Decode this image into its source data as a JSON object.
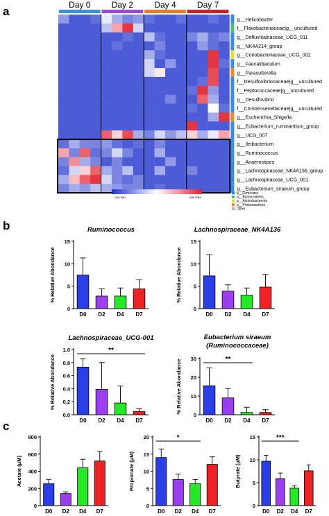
{
  "panels": {
    "a": "a",
    "b": "b",
    "c": "c"
  },
  "heatmap": {
    "days": [
      {
        "label": "Day 0",
        "color": "#3b8fe0"
      },
      {
        "label": "Day 2",
        "color": "#9e47e0"
      },
      {
        "label": "Day 4",
        "color": "#ee7a22"
      },
      {
        "label": "Day 7",
        "color": "#d21e2a"
      }
    ],
    "samples_per_day": [
      4,
      4,
      4,
      4
    ],
    "rows": [
      {
        "label": "g__Helicobacter",
        "phylum": "#3a8de0"
      },
      {
        "label": "f__Flavobacteriaceae|g__uncultured",
        "phylum": "#44c46a"
      },
      {
        "label": "g__Defluviitaleaceae_UCG_011",
        "phylum": "#3a8de0"
      },
      {
        "label": "g__NK4A214_group",
        "phylum": "#3a8de0"
      },
      {
        "label": "g__Coriobacteriaceae_UCG_002",
        "phylum": "#e6dd33"
      },
      {
        "label": "g__Faecalibaculum",
        "phylum": "#3a8de0"
      },
      {
        "label": "g__Parasutterella",
        "phylum": "#ee8a2a"
      },
      {
        "label": "f__Desulfovibrionaceae|g__uncultured",
        "phylum": "#3a8de0"
      },
      {
        "label": "f__Peptococcaceae|g__uncultured",
        "phylum": "#3a8de0"
      },
      {
        "label": "g__Desulfovibrio",
        "phylum": "#3a8de0"
      },
      {
        "label": "f__Christensenellaceae|g__uncultured",
        "phylum": "#3a8de0"
      },
      {
        "label": "g__Escherichia_Shigella",
        "phylum": "#ee8a2a"
      },
      {
        "label": "g__Eubacterium_ruminantium_group",
        "phylum": "#3a8de0"
      },
      {
        "label": "g__UCG_007",
        "phylum": "#3a8de0"
      },
      {
        "label": "g__Ileibacterium",
        "phylum": "#3a8de0"
      },
      {
        "label": "g__Ruminococcus",
        "phylum": "#3a8de0"
      },
      {
        "label": "g__Anaerostipes",
        "phylum": "#3a8de0"
      },
      {
        "label": "g__Lachnospiraceae_NK4A136_group",
        "phylum": "#3a8de0"
      },
      {
        "label": "g__Lachnospiraceae_UCG_001",
        "phylum": "#3a8de0"
      },
      {
        "label": "g__Eubacterium_siraeum_group",
        "phylum": "#3a8de0"
      }
    ],
    "values": [
      [
        0.25,
        0.1,
        0.1,
        0.15,
        0.45,
        0.3,
        0.2,
        0.25,
        0.15,
        0.1,
        0.1,
        0.15,
        0.1,
        0.1,
        0.15,
        0.1
      ],
      [
        0.1,
        0.1,
        0.1,
        0.1,
        0.35,
        0.7,
        0.95,
        0.4,
        0.1,
        0.1,
        0.1,
        0.1,
        0.1,
        0.1,
        0.1,
        0.1
      ],
      [
        0.1,
        0.1,
        0.1,
        0.1,
        0.1,
        0.1,
        0.15,
        0.1,
        0.35,
        0.15,
        0.1,
        0.1,
        0.2,
        0.3,
        0.15,
        0.2
      ],
      [
        0.1,
        0.1,
        0.1,
        0.1,
        0.1,
        0.15,
        0.1,
        0.1,
        0.1,
        0.2,
        0.1,
        0.1,
        0.1,
        0.25,
        0.15,
        0.1
      ],
      [
        0.1,
        0.1,
        0.1,
        0.1,
        0.1,
        0.1,
        0.1,
        0.1,
        0.3,
        0.15,
        0.1,
        0.1,
        0.1,
        0.1,
        0.95,
        0.1
      ],
      [
        0.1,
        0.1,
        0.1,
        0.1,
        0.1,
        0.1,
        0.1,
        0.1,
        0.4,
        0.1,
        0.25,
        0.1,
        0.1,
        0.1,
        0.95,
        0.15
      ],
      [
        0.1,
        0.1,
        0.1,
        0.1,
        0.1,
        0.1,
        0.1,
        0.1,
        0.4,
        0.55,
        0.1,
        0.1,
        0.1,
        0.1,
        0.9,
        0.1
      ],
      [
        0.1,
        0.1,
        0.1,
        0.1,
        0.1,
        0.1,
        0.1,
        0.1,
        0.1,
        0.1,
        0.1,
        0.1,
        0.1,
        0.15,
        0.9,
        0.1
      ],
      [
        0.1,
        0.1,
        0.1,
        0.1,
        0.1,
        0.1,
        0.1,
        0.1,
        0.1,
        0.1,
        0.1,
        0.1,
        0.15,
        0.95,
        0.25,
        0.1
      ],
      [
        0.1,
        0.1,
        0.1,
        0.1,
        0.1,
        0.1,
        0.1,
        0.1,
        0.1,
        0.1,
        0.2,
        0.1,
        0.1,
        0.85,
        0.3,
        0.1
      ],
      [
        0.1,
        0.1,
        0.1,
        0.1,
        0.1,
        0.1,
        0.1,
        0.1,
        0.1,
        0.1,
        0.1,
        0.1,
        0.15,
        0.1,
        0.5,
        0.15
      ],
      [
        0.1,
        0.1,
        0.1,
        0.1,
        0.1,
        0.1,
        0.1,
        0.1,
        0.1,
        0.1,
        0.1,
        0.1,
        0.1,
        0.1,
        0.3,
        0.95
      ],
      [
        0.1,
        0.1,
        0.1,
        0.1,
        0.1,
        0.1,
        0.1,
        0.1,
        0.1,
        0.1,
        0.1,
        0.1,
        0.95,
        0.1,
        0.1,
        0.1
      ],
      [
        0.1,
        0.1,
        0.1,
        0.1,
        0.85,
        0.6,
        0.9,
        0.3,
        0.2,
        0.4,
        0.25,
        0.35,
        0.6,
        0.3,
        0.45,
        0.7
      ],
      [
        0.15,
        0.3,
        0.2,
        0.2,
        0.25,
        0.15,
        0.1,
        0.15,
        0.1,
        0.2,
        0.1,
        0.1,
        0.1,
        0.1,
        0.1,
        0.1
      ],
      [
        0.7,
        0.2,
        0.85,
        0.15,
        0.2,
        0.4,
        0.2,
        0.1,
        0.1,
        0.3,
        0.1,
        0.1,
        0.1,
        0.1,
        0.1,
        0.1
      ],
      [
        0.2,
        0.75,
        0.3,
        0.2,
        0.1,
        0.2,
        0.1,
        0.1,
        0.1,
        0.1,
        0.25,
        0.1,
        0.1,
        0.1,
        0.1,
        0.1
      ],
      [
        0.15,
        0.4,
        0.6,
        0.85,
        0.3,
        0.2,
        0.35,
        0.1,
        0.1,
        0.3,
        0.1,
        0.1,
        0.2,
        0.1,
        0.1,
        0.1
      ],
      [
        0.3,
        0.65,
        0.85,
        0.95,
        0.4,
        0.2,
        0.15,
        0.2,
        0.1,
        0.1,
        0.1,
        0.1,
        0.1,
        0.1,
        0.1,
        0.1
      ],
      [
        0.2,
        0.3,
        0.25,
        0.35,
        0.3,
        0.25,
        0.2,
        0.2,
        0.1,
        0.15,
        0.1,
        0.1,
        0.1,
        0.1,
        0.1,
        0.1
      ]
    ],
    "scale_min": "row min",
    "scale_max": "row max",
    "scale_colors": [
      "#1f33cc",
      "#ffffff",
      "#e21f2b"
    ],
    "phylum_legend": [
      {
        "label": "p__Firmicutes",
        "color": "#3a8de0"
      },
      {
        "label": "p__Bacteroidetes",
        "color": "#44c46a"
      },
      {
        "label": "p__Actinobacteriota",
        "color": "#e6dd33"
      },
      {
        "label": "p__Proteobacteria",
        "color": "#ee8a2a"
      },
      {
        "label": "Other",
        "color": "#b0b0b0"
      }
    ]
  },
  "chart_data": [
    {
      "type": "bar",
      "title": "Ruminococcus",
      "ylabel": "% Relative Abondance",
      "categories": [
        "D0",
        "D2",
        "D4",
        "D7"
      ],
      "values": [
        7.5,
        2.8,
        2.8,
        4.4
      ],
      "errors": [
        3.8,
        1.6,
        1.8,
        2.0
      ],
      "ylim": [
        0,
        15
      ],
      "yticks": [
        0,
        5,
        10,
        15
      ],
      "colors": [
        "#2a3ee8",
        "#9a3ef0",
        "#27e827",
        "#ee2222"
      ],
      "significance": []
    },
    {
      "type": "bar",
      "title": "Lachnospiraceae_NK4A136",
      "ylabel": "% Relative Abondance",
      "categories": [
        "D0",
        "D2",
        "D4",
        "D7"
      ],
      "values": [
        7.3,
        3.9,
        3.0,
        4.8
      ],
      "errors": [
        4.7,
        1.4,
        1.6,
        2.8
      ],
      "ylim": [
        0,
        15
      ],
      "yticks": [
        0,
        5,
        10,
        15
      ],
      "colors": [
        "#2a3ee8",
        "#9a3ef0",
        "#27e827",
        "#ee2222"
      ],
      "significance": []
    },
    {
      "type": "bar",
      "title": "Lachnospiraceae_UCG-001",
      "ylabel": "% Relative Abondance",
      "categories": [
        "D0",
        "D2",
        "D4",
        "D7"
      ],
      "values": [
        0.73,
        0.39,
        0.18,
        0.05
      ],
      "errors": [
        0.13,
        0.41,
        0.26,
        0.04
      ],
      "ylim": [
        0,
        1.0
      ],
      "yticks": [
        0,
        0.2,
        0.4,
        0.6,
        0.8,
        1.0
      ],
      "yticklabels": [
        "0.0",
        "0.2",
        "0.4",
        "0.6",
        "0.8",
        "1.0"
      ],
      "colors": [
        "#2a3ee8",
        "#9a3ef0",
        "#27e827",
        "#ee2222"
      ],
      "significance": [
        {
          "from": 0,
          "to": 3,
          "label": "**"
        }
      ]
    },
    {
      "type": "bar",
      "title": "Eubacterium siraeum",
      "subtitle": "(Ruminococcaceae)",
      "ylabel": "% Relative Abondance",
      "categories": [
        "D0",
        "D2",
        "D4",
        "D7"
      ],
      "values": [
        15.5,
        9.0,
        1.2,
        1.2
      ],
      "errors": [
        9.5,
        5.0,
        2.8,
        1.5
      ],
      "ylim": [
        0,
        30
      ],
      "yticks": [
        0,
        10,
        20,
        30
      ],
      "colors": [
        "#2a3ee8",
        "#9a3ef0",
        "#27e827",
        "#ee2222"
      ],
      "significance": [
        {
          "from": 0,
          "to": 2,
          "label": "**"
        }
      ]
    },
    {
      "type": "bar",
      "title": "",
      "ylabel": "Acetate (μM)",
      "categories": [
        "D0",
        "D2",
        "D4",
        "D7"
      ],
      "values": [
        255,
        140,
        440,
        520
      ],
      "errors": [
        50,
        20,
        100,
        110
      ],
      "ylim": [
        0,
        800
      ],
      "yticks": [
        0,
        200,
        400,
        600,
        800
      ],
      "colors": [
        "#2a3ee8",
        "#9a3ef0",
        "#27e827",
        "#ee2222"
      ],
      "significance": []
    },
    {
      "type": "bar",
      "title": "",
      "ylabel": "Propionate (μM)",
      "categories": [
        "D0",
        "D2",
        "D4",
        "D7"
      ],
      "values": [
        14.0,
        7.6,
        6.4,
        12.0
      ],
      "errors": [
        2.5,
        1.6,
        1.2,
        2.2
      ],
      "ylim": [
        0,
        20
      ],
      "yticks": [
        0,
        5,
        10,
        15,
        20
      ],
      "colors": [
        "#2a3ee8",
        "#9a3ef0",
        "#27e827",
        "#ee2222"
      ],
      "significance": [
        {
          "from": 0,
          "to": 2,
          "label": "*"
        }
      ]
    },
    {
      "type": "bar",
      "title": "",
      "ylabel": "Butyrate (μM)",
      "categories": [
        "D0",
        "D2",
        "D4",
        "D7"
      ],
      "values": [
        9.7,
        5.9,
        3.8,
        7.6
      ],
      "errors": [
        1.3,
        1.2,
        0.5,
        1.3
      ],
      "ylim": [
        0,
        15
      ],
      "yticks": [
        0,
        5,
        10,
        15
      ],
      "colors": [
        "#2a3ee8",
        "#9a3ef0",
        "#27e827",
        "#ee2222"
      ],
      "significance": [
        {
          "from": 0,
          "to": 2,
          "label": "***"
        }
      ]
    }
  ]
}
